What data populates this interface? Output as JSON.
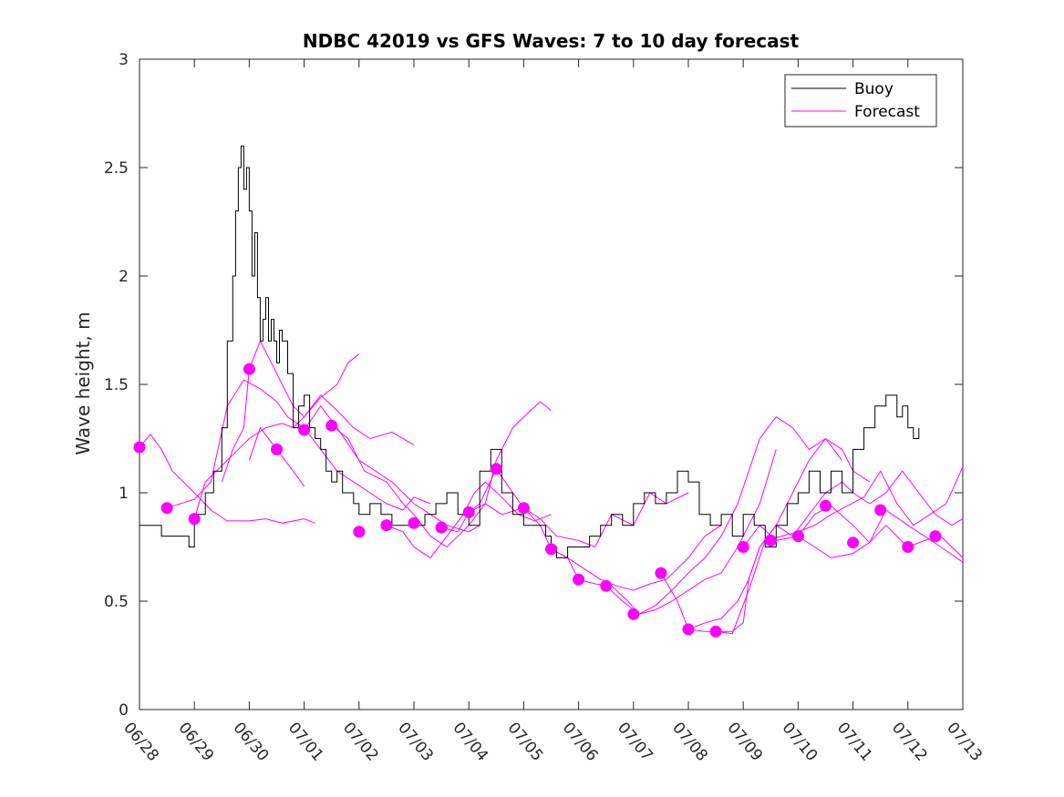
{
  "chart_data": {
    "type": "line",
    "title": "NDBC 42019 vs GFS Waves: 7 to 10 day forecast",
    "xlabel": "",
    "ylabel": "Wave height, m",
    "x_ticks": [
      "06/28",
      "06/29",
      "06/30",
      "07/01",
      "07/02",
      "07/03",
      "07/04",
      "07/05",
      "07/06",
      "07/07",
      "07/08",
      "07/09",
      "07/10",
      "07/11",
      "07/12",
      "07/13"
    ],
    "x_units": "days since 06/28",
    "xlim": [
      0,
      15
    ],
    "ylim": [
      0,
      3
    ],
    "y_ticks": [
      "0",
      "0.5",
      "1",
      "1.5",
      "2",
      "2.5",
      "3"
    ],
    "grid": false,
    "legend": {
      "position": "top-right",
      "entries": [
        {
          "name": "Buoy",
          "color": "#000000"
        },
        {
          "name": "Forecast",
          "color": "#ff00ff"
        }
      ]
    },
    "buoy": {
      "name": "Buoy",
      "color": "#000000",
      "x": [
        0.0,
        0.2,
        0.4,
        0.7,
        0.9,
        1.0,
        1.2,
        1.35,
        1.5,
        1.6,
        1.7,
        1.75,
        1.8,
        1.85,
        1.9,
        1.95,
        2.0,
        2.05,
        2.1,
        2.15,
        2.2,
        2.25,
        2.3,
        2.35,
        2.4,
        2.45,
        2.5,
        2.55,
        2.6,
        2.7,
        2.8,
        2.9,
        3.0,
        3.1,
        3.2,
        3.3,
        3.4,
        3.5,
        3.6,
        3.7,
        3.8,
        3.9,
        4.0,
        4.2,
        4.4,
        4.6,
        4.8,
        5.0,
        5.2,
        5.4,
        5.6,
        5.8,
        6.0,
        6.2,
        6.4,
        6.6,
        6.8,
        7.0,
        7.2,
        7.4,
        7.5,
        7.6,
        7.8,
        8.0,
        8.2,
        8.4,
        8.6,
        8.8,
        9.0,
        9.2,
        9.4,
        9.6,
        9.8,
        10.0,
        10.2,
        10.4,
        10.6,
        10.8,
        11.0,
        11.2,
        11.4,
        11.6,
        11.8,
        12.0,
        12.2,
        12.4,
        12.6,
        12.8,
        13.0,
        13.2,
        13.4,
        13.6,
        13.8,
        13.9,
        14.0,
        14.1,
        14.2
      ],
      "y": [
        0.85,
        0.85,
        0.8,
        0.8,
        0.75,
        0.9,
        1.0,
        1.1,
        1.3,
        1.7,
        2.0,
        2.3,
        2.5,
        2.6,
        2.4,
        2.5,
        2.3,
        2.0,
        2.2,
        1.9,
        1.7,
        1.8,
        1.9,
        1.7,
        1.8,
        1.7,
        1.6,
        1.75,
        1.7,
        1.55,
        1.3,
        1.4,
        1.45,
        1.3,
        1.25,
        1.2,
        1.1,
        1.05,
        1.1,
        1.0,
        1.0,
        0.95,
        0.9,
        0.95,
        0.9,
        0.85,
        0.85,
        0.85,
        0.9,
        0.95,
        1.0,
        0.9,
        0.85,
        1.1,
        1.2,
        1.0,
        0.9,
        0.85,
        0.85,
        0.8,
        0.75,
        0.7,
        0.75,
        0.75,
        0.8,
        0.85,
        0.9,
        0.85,
        0.95,
        1.0,
        0.95,
        1.0,
        1.1,
        1.05,
        0.9,
        0.85,
        0.9,
        0.8,
        0.9,
        0.85,
        0.75,
        0.85,
        0.95,
        1.0,
        1.1,
        1.0,
        1.1,
        1.0,
        1.2,
        1.3,
        1.4,
        1.45,
        1.35,
        1.4,
        1.3,
        1.25,
        1.3
      ]
    },
    "forecast": {
      "name": "Forecast",
      "color": "#ff00ff",
      "markers": {
        "x": [
          0.0,
          0.5,
          1.0,
          2.0,
          2.5,
          3.0,
          3.5,
          4.0,
          4.5,
          5.0,
          5.5,
          6.0,
          6.5,
          7.0,
          7.5,
          8.0,
          8.5,
          9.0,
          9.5,
          10.0,
          10.5,
          11.0,
          11.5,
          12.0,
          12.5,
          13.0,
          13.5,
          14.0,
          14.5
        ],
        "y": [
          1.21,
          0.93,
          0.88,
          1.57,
          1.2,
          1.29,
          1.31,
          0.82,
          0.85,
          0.86,
          0.84,
          0.91,
          1.11,
          0.93,
          0.74,
          0.6,
          0.57,
          0.44,
          0.63,
          0.37,
          0.36,
          0.75,
          0.78,
          0.8,
          0.94,
          0.77,
          0.92,
          0.75,
          0.8
        ]
      },
      "lines": [
        {
          "x": [
            0.0,
            0.2,
            0.4,
            0.6,
            0.8,
            1.0,
            1.3,
            1.6,
            2.0,
            2.3,
            2.6,
            3.0,
            3.2
          ],
          "y": [
            1.21,
            1.27,
            1.2,
            1.1,
            1.05,
            1.0,
            0.92,
            0.87,
            0.87,
            0.88,
            0.86,
            0.88,
            0.86
          ]
        },
        {
          "x": [
            1.0,
            1.2,
            1.4,
            1.6,
            2.0,
            2.3,
            2.6,
            2.8,
            3.0,
            3.3,
            3.6,
            3.8,
            4.0
          ],
          "y": [
            0.88,
            1.05,
            1.1,
            1.15,
            1.25,
            1.3,
            1.32,
            1.3,
            1.35,
            1.44,
            1.5,
            1.6,
            1.64
          ]
        },
        {
          "x": [
            1.5,
            1.7,
            1.9,
            2.0,
            2.2,
            2.4,
            2.6,
            2.8,
            3.0,
            3.3,
            3.6,
            3.9,
            4.2,
            4.6,
            5.0
          ],
          "y": [
            1.05,
            1.2,
            1.3,
            1.57,
            1.7,
            1.6,
            1.5,
            1.4,
            1.35,
            1.45,
            1.38,
            1.3,
            1.25,
            1.28,
            1.22
          ]
        },
        {
          "x": [
            2.0,
            2.2,
            2.5,
            2.8,
            3.0
          ],
          "y": [
            1.15,
            1.3,
            1.2,
            1.1,
            1.03
          ]
        },
        {
          "x": [
            0.5,
            1.0,
            1.3,
            1.6,
            1.9,
            2.2,
            2.5,
            2.7,
            3.0,
            3.3,
            3.6,
            3.9,
            4.2,
            4.5,
            4.8,
            5.0,
            5.3
          ],
          "y": [
            0.93,
            0.97,
            1.05,
            1.4,
            1.52,
            1.48,
            1.42,
            1.35,
            1.3,
            1.2,
            1.1,
            1.05,
            1.0,
            0.95,
            0.92,
            0.98,
            0.95
          ]
        },
        {
          "x": [
            3.0,
            3.3,
            3.6,
            4.0,
            4.3,
            4.6,
            5.0,
            5.3,
            5.6,
            6.0,
            6.2
          ],
          "y": [
            1.29,
            1.4,
            1.3,
            1.15,
            1.1,
            1.05,
            0.95,
            0.9,
            0.85,
            0.82,
            0.85
          ]
        },
        {
          "x": [
            3.5,
            3.8,
            4.1,
            4.5,
            4.8,
            5.0,
            5.3,
            5.6,
            6.0,
            6.3,
            6.5,
            6.8,
            7.0,
            7.3,
            7.5
          ],
          "y": [
            1.31,
            1.25,
            1.1,
            1.05,
            0.95,
            0.9,
            0.8,
            0.75,
            0.85,
            0.95,
            1.15,
            1.3,
            1.35,
            1.42,
            1.38
          ]
        },
        {
          "x": [
            4.5,
            4.8,
            5.0,
            5.3,
            5.6,
            5.9,
            6.1,
            6.3,
            6.6,
            6.9,
            7.2,
            7.5
          ],
          "y": [
            0.85,
            0.82,
            0.75,
            0.7,
            0.8,
            0.9,
            1.0,
            1.05,
            0.98,
            0.9,
            0.87,
            0.9
          ]
        },
        {
          "x": [
            5.5,
            5.8,
            6.0,
            6.2,
            6.5,
            6.8,
            7.0,
            7.3,
            7.6,
            8.0,
            8.3,
            8.6,
            9.0,
            9.3,
            9.6,
            10.0
          ],
          "y": [
            0.84,
            0.82,
            0.91,
            0.95,
            1.11,
            1.0,
            0.93,
            0.88,
            0.8,
            0.78,
            0.75,
            0.9,
            0.85,
            1.0,
            0.95,
            1.0
          ]
        },
        {
          "x": [
            6.0,
            6.3,
            6.6,
            7.0,
            7.3,
            7.5,
            7.8,
            8.1,
            8.4,
            8.7,
            9.0,
            9.3,
            9.6,
            10.0,
            10.3,
            10.6
          ],
          "y": [
            0.91,
            0.95,
            0.9,
            0.93,
            0.85,
            0.74,
            0.7,
            0.65,
            0.6,
            0.57,
            0.55,
            0.58,
            0.6,
            0.7,
            0.8,
            0.85
          ]
        },
        {
          "x": [
            7.5,
            7.8,
            8.0,
            8.3,
            8.6,
            8.9,
            9.1,
            9.4,
            9.7,
            10.0,
            10.3,
            10.6,
            10.9,
            11.1,
            11.3,
            11.6
          ],
          "y": [
            0.74,
            0.7,
            0.6,
            0.58,
            0.57,
            0.5,
            0.44,
            0.46,
            0.5,
            0.55,
            0.6,
            0.63,
            0.75,
            0.85,
            0.95,
            1.2
          ]
        },
        {
          "x": [
            8.5,
            8.8,
            9.1,
            9.4,
            9.7,
            10.0,
            10.3,
            10.6,
            10.9,
            11.1,
            11.3,
            11.6,
            11.9,
            12.2,
            12.5,
            12.8
          ],
          "y": [
            0.57,
            0.5,
            0.44,
            0.48,
            0.55,
            0.63,
            0.7,
            0.8,
            0.95,
            1.1,
            1.25,
            1.35,
            1.3,
            1.2,
            1.25,
            1.15
          ]
        },
        {
          "x": [
            9.5,
            9.8,
            10.0,
            10.3,
            10.6,
            10.9,
            11.1,
            11.3,
            11.6,
            11.9,
            12.2,
            12.5,
            12.8,
            13.0,
            13.3
          ],
          "y": [
            0.63,
            0.5,
            0.37,
            0.4,
            0.42,
            0.5,
            0.6,
            0.75,
            0.85,
            1.0,
            1.15,
            1.25,
            1.2,
            1.1,
            1.05
          ]
        },
        {
          "x": [
            10.0,
            10.3,
            10.5,
            10.8,
            11.0,
            11.1,
            11.3,
            11.6,
            11.9,
            12.2,
            12.5,
            12.8,
            13.0,
            13.3,
            13.6,
            13.9,
            14.2,
            14.5,
            14.8,
            15.0
          ],
          "y": [
            0.37,
            0.36,
            0.36,
            0.36,
            0.4,
            0.6,
            0.75,
            0.85,
            0.8,
            0.9,
            1.0,
            1.05,
            1.0,
            0.95,
            1.0,
            1.1,
            1.0,
            0.9,
            0.85,
            0.88
          ]
        },
        {
          "x": [
            10.5,
            10.8,
            11.1,
            11.4,
            11.7,
            12.0,
            12.3,
            12.6,
            12.9,
            13.2,
            13.5,
            13.8,
            14.1,
            14.4,
            14.7,
            15.0
          ],
          "y": [
            0.36,
            0.35,
            0.55,
            0.78,
            0.8,
            0.82,
            0.85,
            0.9,
            0.94,
            0.98,
            1.1,
            0.95,
            0.85,
            0.9,
            0.95,
            1.12
          ]
        },
        {
          "x": [
            11.0,
            11.3,
            11.6,
            12.0,
            12.3,
            12.6,
            13.0,
            13.3,
            13.6,
            14.0,
            14.3,
            14.6,
            15.0
          ],
          "y": [
            0.75,
            0.85,
            0.78,
            0.8,
            0.75,
            0.7,
            0.72,
            0.77,
            0.92,
            0.85,
            0.8,
            0.75,
            0.68
          ]
        },
        {
          "x": [
            12.0,
            12.3,
            12.6,
            13.0,
            13.3,
            13.6,
            14.0,
            14.3,
            14.6,
            15.0
          ],
          "y": [
            0.8,
            0.9,
            0.94,
            0.85,
            0.77,
            0.85,
            0.75,
            0.78,
            0.8,
            0.7
          ]
        }
      ]
    }
  }
}
